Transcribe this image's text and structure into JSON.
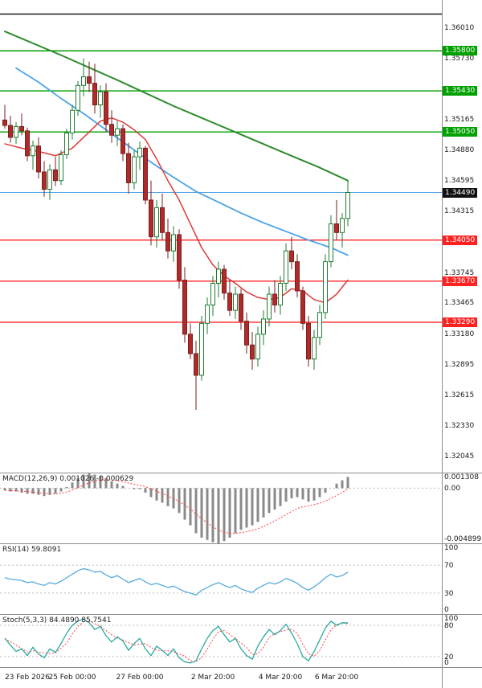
{
  "colors": {
    "bull": "#ffffff",
    "bull_border": "#1e7d32",
    "bear": "#b02a2a",
    "bear_border": "#7a1f1f",
    "ma_green": "#2e8b2e",
    "ma_blue": "#4aa3e8",
    "ma_red": "#e03a3a",
    "level_green": "#00a000",
    "level_red": "#ff2020",
    "current_price_line": "#5aa7e8",
    "current_price_box": "#111111",
    "black_line": "#1a1a1a",
    "macd_bar": "#8a8a8a",
    "signal": "#ff4040",
    "rsi_line": "#55aadd",
    "stoch_k": "#28a8a0",
    "stoch_d": "#ff4040",
    "guide": "#b8b8b8"
  },
  "x_axis": {
    "labels": [
      {
        "text": "23 Feb 2026",
        "i": 4
      },
      {
        "text": "25 Feb 00:00",
        "i": 12
      },
      {
        "text": "27 Feb 00:00",
        "i": 24
      },
      {
        "text": "2 Mar 20:00",
        "i": 37
      },
      {
        "text": "4 Mar 20:00",
        "i": 49
      },
      {
        "text": "6 Mar 20:00",
        "i": 59
      }
    ]
  },
  "chart_data": [
    {
      "type": "candlestick",
      "ylim": [
        1.319,
        1.3627
      ],
      "top_line": 1.3614,
      "levels": [
        {
          "value": 1.358,
          "label": "1.35800",
          "color": "green"
        },
        {
          "value": 1.3543,
          "label": "1.35430",
          "color": "green"
        },
        {
          "value": 1.3505,
          "label": "1.35050",
          "color": "green"
        },
        {
          "value": 1.3405,
          "label": "1.34050",
          "color": "red"
        },
        {
          "value": 1.3367,
          "label": "1.33670",
          "color": "red"
        },
        {
          "value": 1.3329,
          "label": "1.33290",
          "color": "red"
        }
      ],
      "current_price": {
        "value": 1.3449,
        "label": "1.34490"
      },
      "y_ticks": [
        1.3601,
        1.3573,
        1.35165,
        1.3488,
        1.34595,
        1.34315,
        1.33745,
        1.33465,
        1.3318,
        1.32895,
        1.32615,
        1.3233,
        1.32045
      ],
      "candles": [
        [
          1.3516,
          1.353,
          1.3508,
          1.3511
        ],
        [
          1.3511,
          1.352,
          1.3495,
          1.35
        ],
        [
          1.35,
          1.3514,
          1.3494,
          1.351
        ],
        [
          1.351,
          1.3522,
          1.3502,
          1.3506
        ],
        [
          1.3506,
          1.3509,
          1.3478,
          1.3483
        ],
        [
          1.3483,
          1.3497,
          1.347,
          1.3492
        ],
        [
          1.3492,
          1.35,
          1.3462,
          1.3468
        ],
        [
          1.3468,
          1.3478,
          1.3445,
          1.3452
        ],
        [
          1.3452,
          1.3475,
          1.3442,
          1.347
        ],
        [
          1.347,
          1.3482,
          1.3455,
          1.346
        ],
        [
          1.346,
          1.3488,
          1.3456,
          1.3484
        ],
        [
          1.3484,
          1.3508,
          1.348,
          1.3504
        ],
        [
          1.3504,
          1.353,
          1.3498,
          1.3525
        ],
        [
          1.3525,
          1.3552,
          1.352,
          1.3548
        ],
        [
          1.3548,
          1.3573,
          1.3538,
          1.3556
        ],
        [
          1.3556,
          1.357,
          1.3542,
          1.355
        ],
        [
          1.355,
          1.3568,
          1.3522,
          1.353
        ],
        [
          1.353,
          1.3548,
          1.3518,
          1.3542
        ],
        [
          1.3542,
          1.355,
          1.3505,
          1.3512
        ],
        [
          1.3512,
          1.3525,
          1.3495,
          1.3502
        ],
        [
          1.3502,
          1.3515,
          1.3492,
          1.3508
        ],
        [
          1.3508,
          1.3512,
          1.3478,
          1.3485
        ],
        [
          1.3485,
          1.3495,
          1.3448,
          1.3458
        ],
        [
          1.3458,
          1.3488,
          1.3452,
          1.3482
        ],
        [
          1.3482,
          1.3496,
          1.347,
          1.349
        ],
        [
          1.349,
          1.3492,
          1.3438,
          1.3442
        ],
        [
          1.3442,
          1.346,
          1.34,
          1.3408
        ],
        [
          1.3408,
          1.3442,
          1.3398,
          1.3435
        ],
        [
          1.3435,
          1.3448,
          1.3405,
          1.3412
        ],
        [
          1.3412,
          1.3425,
          1.3388,
          1.3395
        ],
        [
          1.3395,
          1.3418,
          1.3385,
          1.341
        ],
        [
          1.341,
          1.3415,
          1.336,
          1.3368
        ],
        [
          1.3368,
          1.338,
          1.331,
          1.3318
        ],
        [
          1.3318,
          1.3328,
          1.3295,
          1.33
        ],
        [
          1.33,
          1.3312,
          1.3248,
          1.328
        ],
        [
          1.328,
          1.3335,
          1.3275,
          1.3328
        ],
        [
          1.3328,
          1.3352,
          1.3318,
          1.3345
        ],
        [
          1.3345,
          1.3372,
          1.3335,
          1.3365
        ],
        [
          1.3365,
          1.3385,
          1.3352,
          1.3378
        ],
        [
          1.3378,
          1.3382,
          1.335,
          1.3356
        ],
        [
          1.3356,
          1.3368,
          1.3335,
          1.334
        ],
        [
          1.334,
          1.3362,
          1.3332,
          1.3355
        ],
        [
          1.3355,
          1.336,
          1.3322,
          1.333
        ],
        [
          1.333,
          1.3338,
          1.33,
          1.3308
        ],
        [
          1.3308,
          1.332,
          1.3285,
          1.3295
        ],
        [
          1.3295,
          1.3325,
          1.3288,
          1.3318
        ],
        [
          1.3318,
          1.334,
          1.3308,
          1.3332
        ],
        [
          1.3332,
          1.3362,
          1.3325,
          1.3355
        ],
        [
          1.3355,
          1.3368,
          1.3338,
          1.3345
        ],
        [
          1.3345,
          1.3372,
          1.3336,
          1.3365
        ],
        [
          1.3365,
          1.3402,
          1.3358,
          1.3395
        ],
        [
          1.3395,
          1.3408,
          1.3378,
          1.3385
        ],
        [
          1.3385,
          1.3392,
          1.3352,
          1.3358
        ],
        [
          1.3358,
          1.3362,
          1.3322,
          1.3328
        ],
        [
          1.3328,
          1.3335,
          1.3288,
          1.3295
        ],
        [
          1.3295,
          1.3322,
          1.3285,
          1.3315
        ],
        [
          1.3315,
          1.3345,
          1.3308,
          1.3338
        ],
        [
          1.3338,
          1.3392,
          1.3332,
          1.3385
        ],
        [
          1.3385,
          1.3428,
          1.338,
          1.342
        ],
        [
          1.342,
          1.3442,
          1.3405,
          1.3412
        ],
        [
          1.3412,
          1.343,
          1.3398,
          1.3425
        ],
        [
          1.3425,
          1.346,
          1.3418,
          1.3449
        ]
      ],
      "ma_slow": [
        [
          0,
          1.3598
        ],
        [
          10,
          1.3576
        ],
        [
          20,
          1.3553
        ],
        [
          30,
          1.3529
        ],
        [
          40,
          1.3507
        ],
        [
          50,
          1.3485
        ],
        [
          56,
          1.3472
        ],
        [
          61,
          1.346
        ]
      ],
      "ma_mid": [
        [
          2,
          1.3564
        ],
        [
          6,
          1.3551
        ],
        [
          10,
          1.3536
        ],
        [
          14,
          1.3522
        ],
        [
          18,
          1.3507
        ],
        [
          22,
          1.3492
        ],
        [
          26,
          1.3477
        ],
        [
          30,
          1.3463
        ],
        [
          34,
          1.345
        ],
        [
          38,
          1.344
        ],
        [
          42,
          1.343
        ],
        [
          46,
          1.3421
        ],
        [
          50,
          1.3413
        ],
        [
          54,
          1.3405
        ],
        [
          58,
          1.3398
        ],
        [
          61,
          1.3391
        ]
      ],
      "ma_fast": [
        [
          0,
          1.3494
        ],
        [
          3,
          1.349
        ],
        [
          6,
          1.3487
        ],
        [
          9,
          1.3483
        ],
        [
          12,
          1.349
        ],
        [
          15,
          1.3505
        ],
        [
          17,
          1.3515
        ],
        [
          19,
          1.3518
        ],
        [
          21,
          1.3514
        ],
        [
          23,
          1.3507
        ],
        [
          25,
          1.3498
        ],
        [
          27,
          1.348
        ],
        [
          29,
          1.346
        ],
        [
          31,
          1.3442
        ],
        [
          33,
          1.342
        ],
        [
          35,
          1.3398
        ],
        [
          37,
          1.3382
        ],
        [
          39,
          1.3372
        ],
        [
          41,
          1.3365
        ],
        [
          43,
          1.3357
        ],
        [
          45,
          1.3352
        ],
        [
          47,
          1.335
        ],
        [
          49,
          1.3352
        ],
        [
          51,
          1.336
        ],
        [
          53,
          1.3358
        ],
        [
          55,
          1.335
        ],
        [
          57,
          1.3347
        ],
        [
          59,
          1.3355
        ],
        [
          61,
          1.3368
        ]
      ]
    },
    {
      "type": "macd-histogram",
      "label": "MACD(12,26,9) 0.001026 -0.000629",
      "ylim": [
        -0.004899,
        0.001308
      ],
      "guide_levels": [
        0
      ],
      "y_tick_labels": [
        {
          "v": 0.001308,
          "t": "0.001308"
        },
        {
          "v": 0,
          "t": "0.00"
        },
        {
          "v": -0.004899,
          "t": "-0.004899"
        }
      ],
      "values": [
        -0.0002,
        -0.0003,
        -0.0003,
        -0.0004,
        -0.0005,
        -0.0005,
        -0.0006,
        -0.0007,
        -0.0006,
        -0.0005,
        -0.0003,
        0.0001,
        0.0005,
        0.0009,
        0.0012,
        0.0013,
        0.0012,
        0.0011,
        0.0009,
        0.0006,
        0.0004,
        0.0002,
        0.0,
        -0.0001,
        -0.0001,
        -0.0004,
        -0.0008,
        -0.0011,
        -0.0013,
        -0.0016,
        -0.0018,
        -0.0022,
        -0.0028,
        -0.0033,
        -0.004,
        -0.0044,
        -0.0046,
        -0.0048,
        -0.0049,
        -0.0047,
        -0.0044,
        -0.004,
        -0.0037,
        -0.0035,
        -0.0033,
        -0.003,
        -0.0026,
        -0.0022,
        -0.0019,
        -0.0016,
        -0.0012,
        -0.0009,
        -0.0008,
        -0.001,
        -0.0012,
        -0.0011,
        -0.0008,
        -0.0004,
        0.0,
        0.0004,
        0.0007,
        0.001
      ]
    },
    {
      "type": "line",
      "label": "RSI(14) 59.8091",
      "ylim": [
        0,
        100
      ],
      "guide_levels": [
        70,
        30
      ],
      "y_tick_labels": [
        {
          "v": 100,
          "t": "100"
        },
        {
          "v": 70,
          "t": "70"
        },
        {
          "v": 30,
          "t": "30"
        },
        {
          "v": 0,
          "t": "0"
        }
      ],
      "values": [
        52,
        50,
        49,
        48,
        45,
        46,
        43,
        41,
        45,
        43,
        47,
        52,
        57,
        62,
        65,
        63,
        60,
        61,
        56,
        52,
        55,
        50,
        45,
        48,
        51,
        46,
        42,
        44,
        41,
        38,
        40,
        36,
        32,
        30,
        27,
        34,
        38,
        42,
        45,
        41,
        38,
        41,
        36,
        33,
        31,
        37,
        41,
        45,
        43,
        46,
        51,
        48,
        44,
        38,
        34,
        39,
        45,
        52,
        57,
        53,
        55,
        59.8
      ]
    },
    {
      "type": "stochastic",
      "label": "Stoch(5,3,3) 84.4890 85.7541",
      "ylim": [
        0,
        100
      ],
      "guide_levels": [
        80,
        20
      ],
      "y_tick_labels": [
        {
          "v": 100,
          "t": "100"
        },
        {
          "v": 80,
          "t": "80"
        },
        {
          "v": 20,
          "t": "20"
        },
        {
          "v": 0,
          "t": "0"
        }
      ],
      "values": [
        55,
        42,
        30,
        35,
        22,
        38,
        25,
        18,
        35,
        28,
        45,
        65,
        80,
        88,
        92,
        85,
        72,
        78,
        60,
        48,
        58,
        50,
        32,
        45,
        55,
        35,
        22,
        40,
        32,
        22,
        35,
        18,
        10,
        8,
        12,
        35,
        55,
        70,
        78,
        62,
        48,
        55,
        35,
        22,
        15,
        40,
        58,
        72,
        62,
        70,
        82,
        65,
        45,
        20,
        12,
        30,
        52,
        75,
        88,
        80,
        85,
        84.5
      ]
    }
  ]
}
